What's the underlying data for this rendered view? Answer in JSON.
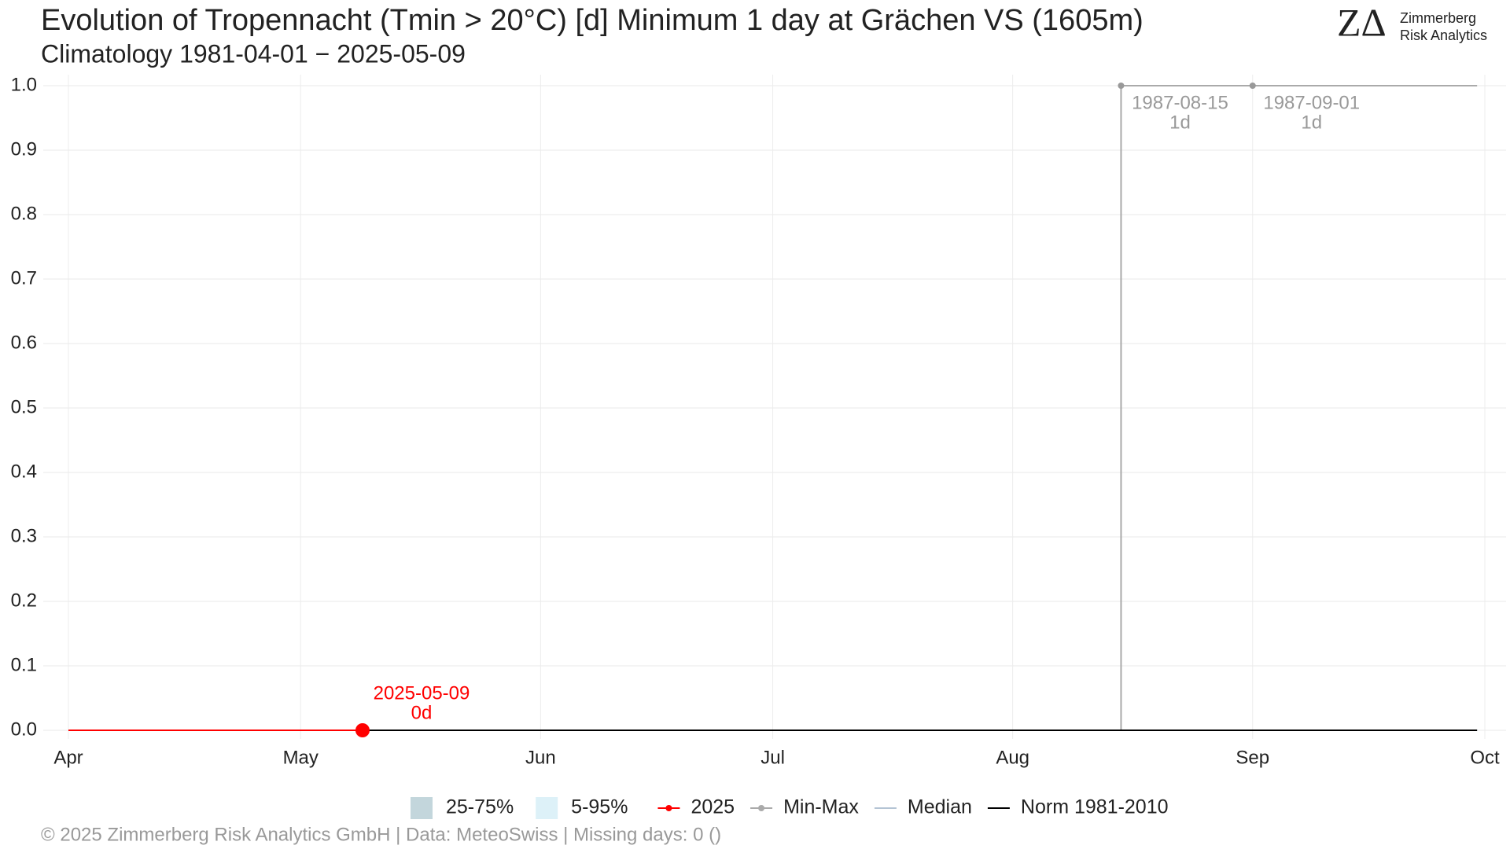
{
  "chart_data": {
    "type": "line",
    "title": "Evolution of Tropennacht (Tmin > 20°C) [d] Minimum 1 day at Grächen  VS (1605m)",
    "subtitle": "Climatology 1981-04-01 − 2025-05-09",
    "xlim": [
      "04-01",
      "10-01"
    ],
    "xticks": [
      {
        "value": "04-01",
        "label": "Apr"
      },
      {
        "value": "05-01",
        "label": "May"
      },
      {
        "value": "06-01",
        "label": "Jun"
      },
      {
        "value": "07-01",
        "label": "Jul"
      },
      {
        "value": "08-01",
        "label": "Aug"
      },
      {
        "value": "09-01",
        "label": "Sep"
      },
      {
        "value": "10-01",
        "label": "Oct"
      }
    ],
    "ylim": [
      0,
      1
    ],
    "yticks": [
      {
        "value": 0,
        "label": "0.0"
      },
      0.1,
      0.2,
      0.3,
      0.4,
      0.5,
      0.6,
      0.7,
      0.8,
      0.9,
      {
        "value": 1,
        "label": "1.0"
      }
    ],
    "grid": true,
    "bands": [
      {
        "name": "25-75%",
        "color": "#c3d6dc"
      },
      {
        "name": "5-95%",
        "color": "#ddf1f8"
      }
    ],
    "series": [
      {
        "name": "2025",
        "color": "#ff0000",
        "marker": true,
        "x": [
          "04-01",
          "05-09"
        ],
        "values": [
          0,
          0
        ]
      },
      {
        "name": "Min-Max",
        "color": "#aaaaaa",
        "marker": true,
        "x": [
          "08-15",
          "08-15",
          "09-30"
        ],
        "values": [
          0,
          1,
          1
        ]
      },
      {
        "name": "Median",
        "color": "#b4c4d4",
        "marker": false,
        "x": [
          "04-01",
          "09-30"
        ],
        "values": [
          0,
          0
        ]
      },
      {
        "name": "Norm 1981-2010",
        "color": "#000000",
        "marker": false,
        "x": [
          "04-01",
          "09-30"
        ],
        "values": [
          0,
          0
        ]
      }
    ],
    "annotations": [
      {
        "date": "2025-05-09",
        "text": "0d",
        "value": 0,
        "color": "#ff0000"
      },
      {
        "date": "1987-08-15",
        "text": "1d",
        "value": 1,
        "color": "#999999"
      },
      {
        "date": "1987-09-01",
        "text": "1d",
        "value": 1,
        "color": "#999999"
      }
    ],
    "footer": "©  2025 Zimmerberg Risk Analytics GmbH | Data: MeteoSwiss | Missing days: 0 ()"
  },
  "branding": {
    "mark": "ZΔ",
    "line1": "Zimmerberg",
    "line2": "Risk Analytics"
  }
}
